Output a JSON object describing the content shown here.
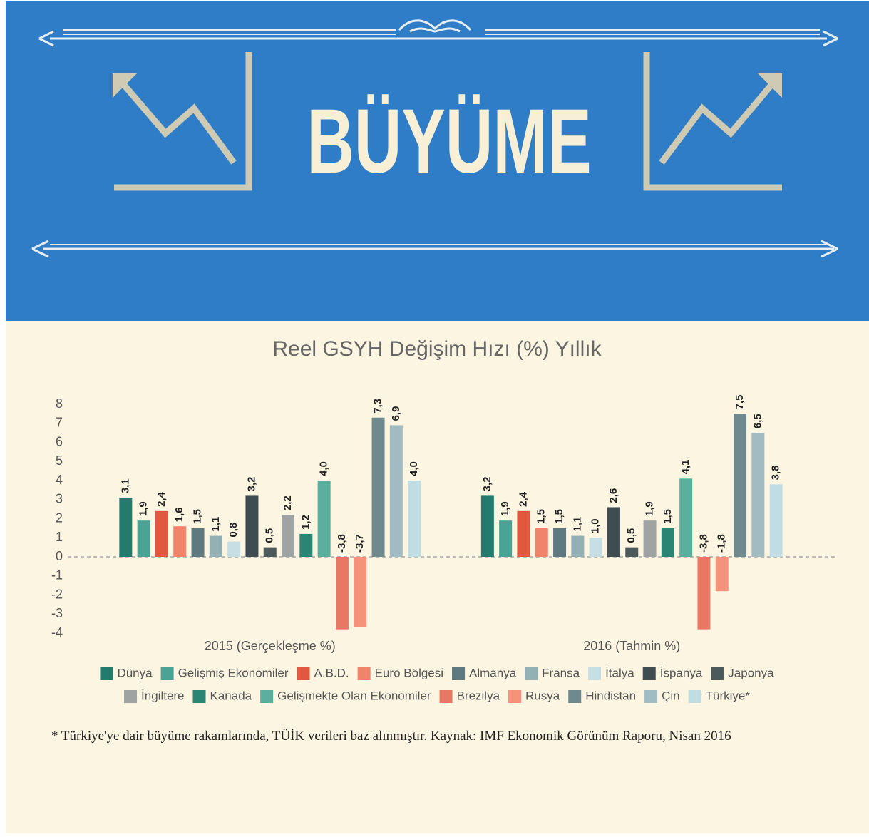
{
  "header": {
    "title": "BÜYÜME"
  },
  "chart_data": {
    "type": "bar",
    "title": "Reel GSYH Değişim Hızı (%) Yıllık",
    "categories": [
      "2015 (Gerçekleşme %)",
      "2016 (Tahmin %)"
    ],
    "ylim": [
      -4,
      8
    ],
    "yticks": [
      -4,
      -3,
      -2,
      -1,
      0,
      1,
      2,
      3,
      4,
      5,
      6,
      7,
      8
    ],
    "legend": "bottom",
    "series": [
      {
        "name": "Dünya",
        "color": "#237a6d",
        "values": [
          3.1,
          3.2
        ],
        "value_labels": [
          "3,1",
          "3,2"
        ]
      },
      {
        "name": "Gelişmiş Ekonomiler",
        "color": "#4aa394",
        "values": [
          1.9,
          1.9
        ],
        "value_labels": [
          "1,9",
          "1,9"
        ]
      },
      {
        "name": "A.B.D.",
        "color": "#e0593f",
        "values": [
          2.4,
          2.4
        ],
        "value_labels": [
          "2,4",
          "2,4"
        ]
      },
      {
        "name": "Euro Bölgesi",
        "color": "#f0846a",
        "values": [
          1.6,
          1.5
        ],
        "value_labels": [
          "1,6",
          "1,5"
        ]
      },
      {
        "name": "Almanya",
        "color": "#5e7a80",
        "values": [
          1.5,
          1.5
        ],
        "value_labels": [
          "1,5",
          "1,5"
        ]
      },
      {
        "name": "Fransa",
        "color": "#93b0b5",
        "values": [
          1.1,
          1.1
        ],
        "value_labels": [
          "1,1",
          "1,1"
        ]
      },
      {
        "name": "İtalya",
        "color": "#c5dfe5",
        "values": [
          0.8,
          1.0
        ],
        "value_labels": [
          "0,8",
          "1,0"
        ]
      },
      {
        "name": "İspanya",
        "color": "#3f4d52",
        "values": [
          3.2,
          2.6
        ],
        "value_labels": [
          "3,2",
          "2,6"
        ]
      },
      {
        "name": "Japonya",
        "color": "#4d5a5c",
        "values": [
          0.5,
          0.5
        ],
        "value_labels": [
          "0,5",
          "0,5"
        ]
      },
      {
        "name": "İngiltere",
        "color": "#9fa4a3",
        "values": [
          2.2,
          1.9
        ],
        "value_labels": [
          "2,2",
          "1,9"
        ]
      },
      {
        "name": "Kanada",
        "color": "#2b8574",
        "values": [
          1.2,
          1.5
        ],
        "value_labels": [
          "1,2",
          "1,5"
        ]
      },
      {
        "name": "Gelişmekte Olan Ekonomiler",
        "color": "#5aaf9e",
        "values": [
          4.0,
          4.1
        ],
        "value_labels": [
          "4,0",
          "4,1"
        ]
      },
      {
        "name": "Brezilya",
        "color": "#e87763",
        "values": [
          -3.8,
          -3.8
        ],
        "value_labels": [
          "-3,8",
          "-3,8"
        ]
      },
      {
        "name": "Rusya",
        "color": "#f5927a",
        "values": [
          -3.7,
          -1.8
        ],
        "value_labels": [
          "-3,7",
          "-1,8"
        ]
      },
      {
        "name": "Hindistan",
        "color": "#6e8a8e",
        "values": [
          7.3,
          7.5
        ],
        "value_labels": [
          "7,3",
          "7,5"
        ]
      },
      {
        "name": "Çin",
        "color": "#a0bcc2",
        "values": [
          6.9,
          6.5
        ],
        "value_labels": [
          "6,9",
          "6,5"
        ]
      },
      {
        "name": "Türkiye*",
        "color": "#c1dde4",
        "values": [
          4.0,
          3.8
        ],
        "value_labels": [
          "4,0",
          "3,8"
        ]
      }
    ]
  },
  "footnote": "* Türkiye'ye dair büyüme rakamlarında, TÜİK verileri baz alınmıştır. Kaynak: IMF Ekonomik Görünüm Raporu, Nisan 2016"
}
